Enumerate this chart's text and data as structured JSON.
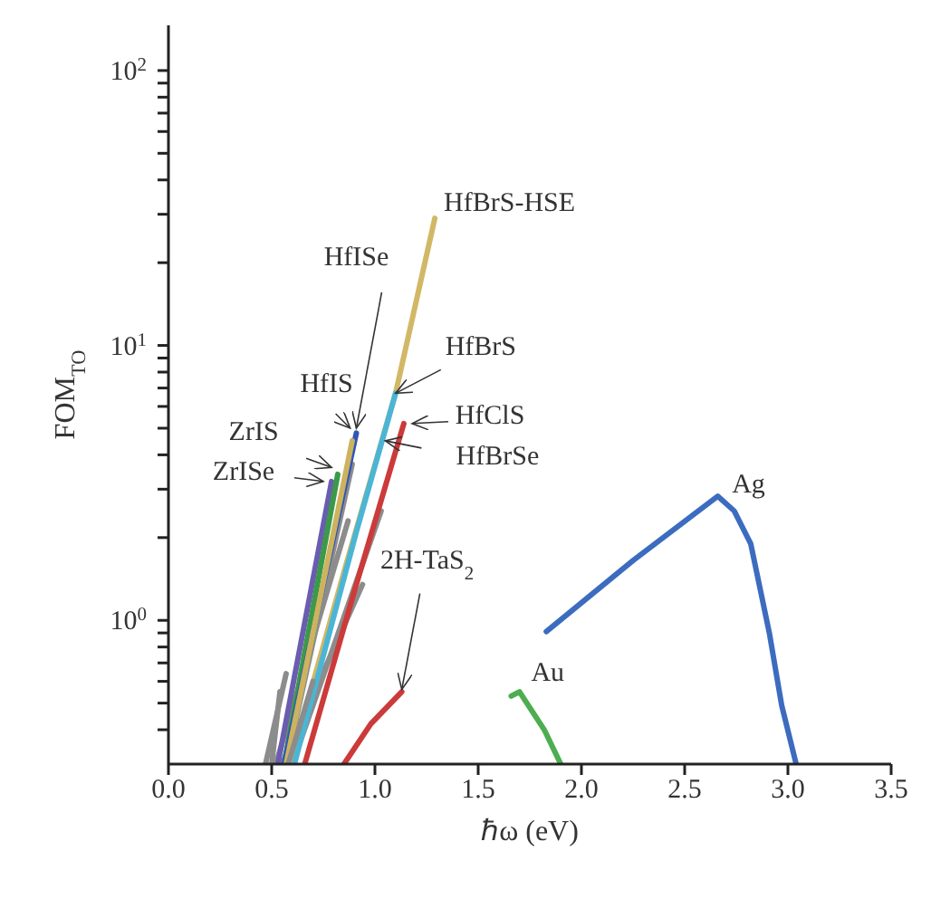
{
  "chart_data": {
    "type": "line",
    "xlabel": "ℏω (eV)",
    "ylabel": "FOM$_{TO}$",
    "log": "y",
    "xlim": [
      0,
      3.5
    ],
    "xticks": [
      {
        "value": 0,
        "label": "0.0"
      },
      0.5,
      {
        "value": 1,
        "label": "1.0"
      },
      1.5,
      {
        "value": 2,
        "label": "2.0"
      },
      2.5,
      {
        "value": 3,
        "label": "3.0"
      },
      3.5
    ],
    "ylim": [
      0.3,
      146
    ],
    "yticks": [
      {
        "value": 0.4,
        "label": null
      },
      {
        "value": 0.5,
        "label": null
      },
      {
        "value": 0.6,
        "label": null
      },
      {
        "value": 0.7,
        "label": null
      },
      {
        "value": 0.8,
        "label": null
      },
      {
        "value": 0.9,
        "label": null
      },
      {
        "value": 1,
        "label": "10$^{0}$"
      },
      {
        "value": 2,
        "label": null
      },
      {
        "value": 3,
        "label": null
      },
      {
        "value": 4,
        "label": null
      },
      {
        "value": 5,
        "label": null
      },
      {
        "value": 6,
        "label": null
      },
      {
        "value": 7,
        "label": null
      },
      {
        "value": 8,
        "label": null
      },
      {
        "value": 9,
        "label": null
      },
      {
        "value": 10,
        "label": "10$^{1}$"
      },
      {
        "value": 20,
        "label": null
      },
      {
        "value": 30,
        "label": null
      },
      {
        "value": 40,
        "label": null
      },
      {
        "value": 50,
        "label": null
      },
      {
        "value": 60,
        "label": null
      },
      {
        "value": 70,
        "label": null
      },
      {
        "value": 80,
        "label": null
      },
      {
        "value": 90,
        "label": null
      },
      {
        "value": 100,
        "label": "10$^{2}$"
      }
    ],
    "series": [
      {
        "color": "#8c8c8c",
        "x": [
          0.47,
          0.57
        ],
        "values": [
          0.3,
          0.64
        ]
      },
      {
        "color": "#8c8c8c",
        "x": [
          0.5,
          0.54
        ],
        "values": [
          0.3,
          0.55
        ]
      },
      {
        "color": "#8c8c8c",
        "x": [
          0.55,
          0.94
        ],
        "values": [
          0.3,
          1.35
        ]
      },
      {
        "color": "#8c8c8c",
        "x": [
          0.52,
          0.87
        ],
        "values": [
          0.3,
          2.3
        ]
      },
      {
        "color": "#8c8c8c",
        "x": [
          0.57,
          0.89
        ],
        "values": [
          0.3,
          3.7
        ]
      },
      {
        "color": "#8c8c8c",
        "x": [
          0.6,
          1.03
        ],
        "values": [
          0.3,
          2.5
        ]
      },
      {
        "color": "#6a5cb0",
        "x": [
          0.53,
          0.79
        ],
        "values": [
          0.3,
          3.2
        ]
      },
      {
        "color": "#3a9a48",
        "x": [
          0.56,
          0.82
        ],
        "values": [
          0.3,
          3.4
        ]
      },
      {
        "color": "#2f56b8",
        "x": [
          0.56,
          0.91
        ],
        "values": [
          0.3,
          4.8
        ]
      },
      {
        "color": "#cdb35e",
        "x": [
          0.57,
          0.89
        ],
        "values": [
          0.3,
          4.5
        ]
      },
      {
        "color": "#d2b866",
        "x": [
          0.59,
          0.85,
          1.1,
          1.29
        ],
        "values": [
          0.3,
          1.5,
          6.7,
          29
        ]
      },
      {
        "color": "#4bb5d6",
        "x": [
          0.61,
          0.91,
          1.1
        ],
        "values": [
          0.3,
          2.1,
          6.7
        ]
      },
      {
        "color": "#cc3a3a",
        "x": [
          0.66,
          0.89,
          1.14
        ],
        "values": [
          0.3,
          1.2,
          5.2
        ]
      },
      {
        "color": "#cc3a3a",
        "x": [
          0.85,
          0.98,
          1.13
        ],
        "values": [
          0.3,
          0.42,
          0.55
        ]
      },
      {
        "color": "#4cae50",
        "x": [
          1.66,
          1.7,
          1.82,
          1.9
        ],
        "values": [
          0.53,
          0.55,
          0.4,
          0.3
        ]
      },
      {
        "color": "#3c6cbf",
        "x": [
          1.83,
          2.25,
          2.66,
          2.74,
          2.82,
          2.91,
          2.97,
          3.04
        ],
        "values": [
          0.91,
          1.65,
          2.83,
          2.5,
          1.9,
          0.9,
          0.49,
          0.3
        ]
      },
      {
        "color": "#8c8c8c",
        "x": [
          0.58,
          0.7
        ],
        "values": [
          0.3,
          0.6
        ]
      }
    ],
    "annotations": [
      {
        "text": "HfBrS-HSE",
        "x": 1.29,
        "y": 29
      },
      {
        "text": "HfISe",
        "x": 0.91,
        "y": 5.0
      },
      {
        "text": "HfIS",
        "x": 0.88,
        "y": 5.0
      },
      {
        "text": "HfBrS",
        "x": 1.1,
        "y": 6.7
      },
      {
        "text": "HfClS",
        "x": 1.18,
        "y": 5.2
      },
      {
        "text": "HfBrSe",
        "x": 1.05,
        "y": 4.5
      },
      {
        "text": "ZrIS",
        "x": 0.79,
        "y": 3.6
      },
      {
        "text": "ZrISe",
        "x": 0.75,
        "y": 3.2
      },
      {
        "text": "2H-TaS$_{2}$",
        "x": 1.13,
        "y": 0.56
      },
      {
        "text": "Au",
        "x": 1.67,
        "y": 0.55
      },
      {
        "text": "Ag",
        "x": 2.66,
        "y": 2.83
      }
    ]
  }
}
